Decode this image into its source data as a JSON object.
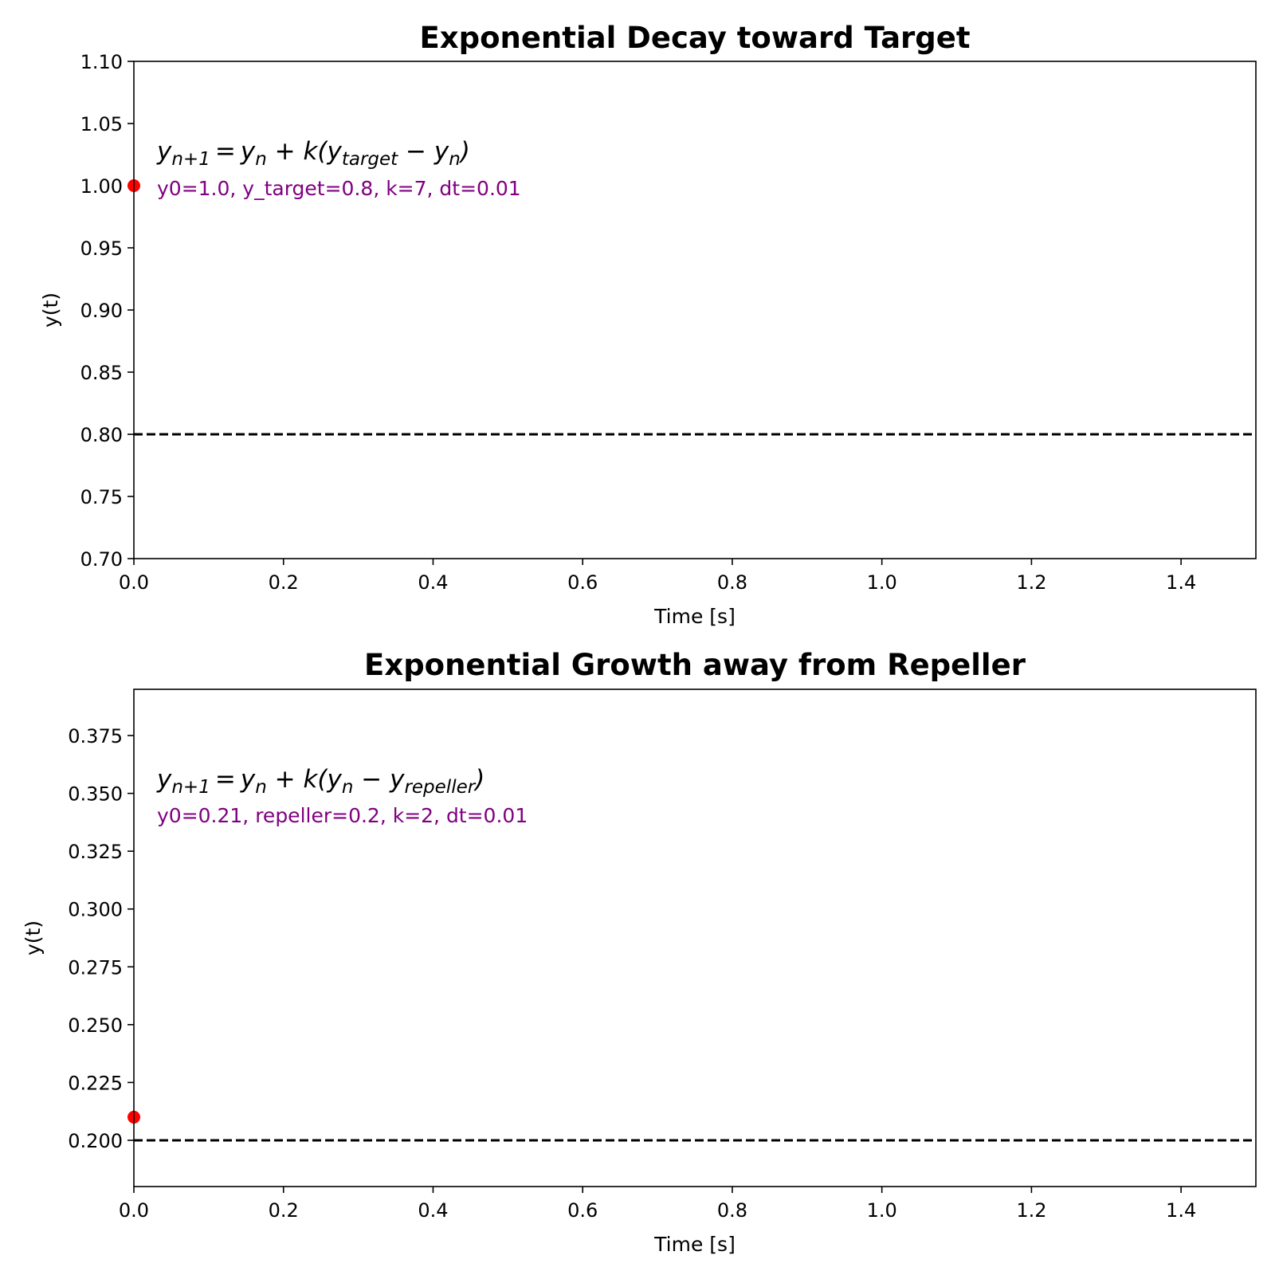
{
  "chart_data": [
    {
      "type": "scatter",
      "title": "Exponential Decay toward Target",
      "xlabel": "Time [s]",
      "ylabel": "y(t)",
      "xlim": [
        0.0,
        1.5
      ],
      "ylim": [
        0.7,
        1.1
      ],
      "xticks": [
        "0.0",
        "0.2",
        "0.4",
        "0.6",
        "0.8",
        "1.0",
        "1.2",
        "1.4"
      ],
      "xtick_values": [
        0.0,
        0.2,
        0.4,
        0.6,
        0.8,
        1.0,
        1.2,
        1.4
      ],
      "yticks": [
        "0.70",
        "0.75",
        "0.80",
        "0.85",
        "0.90",
        "0.95",
        "1.00",
        "1.05",
        "1.10"
      ],
      "ytick_values": [
        0.7,
        0.75,
        0.8,
        0.85,
        0.9,
        0.95,
        1.0,
        1.05,
        1.1
      ],
      "points": [
        {
          "x": 0.0,
          "y": 1.0
        }
      ],
      "point_color": "#ff0000",
      "hline": {
        "y": 0.8,
        "style": "dashed",
        "color": "#000000"
      },
      "equation": {
        "lhs": "y",
        "lhs_sub": "n+1",
        "parts": [
          "y",
          "n",
          " + k(y",
          "target",
          " − y",
          "n",
          ")"
        ]
      },
      "params_text": "y0=1.0, y_target=0.8, k=7, dt=0.01",
      "params_color": "#800080"
    },
    {
      "type": "scatter",
      "title": "Exponential Growth away from Repeller",
      "xlabel": "Time [s]",
      "ylabel": "y(t)",
      "xlim": [
        0.0,
        1.5
      ],
      "ylim": [
        0.18,
        0.395
      ],
      "xticks": [
        "0.0",
        "0.2",
        "0.4",
        "0.6",
        "0.8",
        "1.0",
        "1.2",
        "1.4"
      ],
      "xtick_values": [
        0.0,
        0.2,
        0.4,
        0.6,
        0.8,
        1.0,
        1.2,
        1.4
      ],
      "yticks": [
        "0.200",
        "0.225",
        "0.250",
        "0.275",
        "0.300",
        "0.325",
        "0.350",
        "0.375"
      ],
      "ytick_values": [
        0.2,
        0.225,
        0.25,
        0.275,
        0.3,
        0.325,
        0.35,
        0.375
      ],
      "points": [
        {
          "x": 0.0,
          "y": 0.21
        }
      ],
      "point_color": "#ff0000",
      "hline": {
        "y": 0.2,
        "style": "dashed",
        "color": "#000000"
      },
      "equation": {
        "lhs": "y",
        "lhs_sub": "n+1",
        "parts": [
          "y",
          "n",
          " + k(y",
          "n",
          " − y",
          "repeller",
          ")"
        ]
      },
      "params_text": "y0=0.21, repeller=0.2, k=2, dt=0.01",
      "params_color": "#800080"
    }
  ]
}
